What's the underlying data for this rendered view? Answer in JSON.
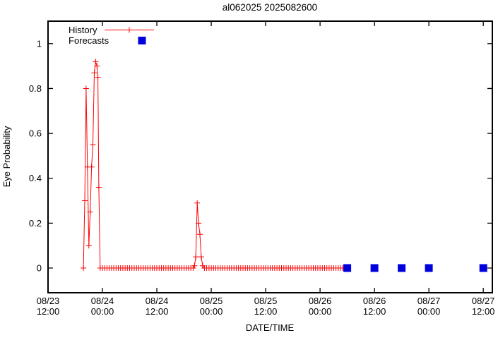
{
  "page": {
    "background": "#ffffff"
  },
  "chart_data": {
    "type": "line",
    "title": "al062025 2025082600",
    "xlabel": "DATE/TIME",
    "ylabel": "Eye Probability",
    "x_units": "hours since 08/23 12:00",
    "xlim": [
      0,
      98
    ],
    "ylim": [
      -0.11,
      1.1
    ],
    "grid": false,
    "legend_position": "top-left-inside",
    "x_ticks": [
      {
        "t": 0,
        "date": "08/23",
        "time": "12:00"
      },
      {
        "t": 12,
        "date": "08/24",
        "time": "00:00"
      },
      {
        "t": 24,
        "date": "08/24",
        "time": "12:00"
      },
      {
        "t": 36,
        "date": "08/25",
        "time": "00:00"
      },
      {
        "t": 48,
        "date": "08/25",
        "time": "12:00"
      },
      {
        "t": 60,
        "date": "08/26",
        "time": "00:00"
      },
      {
        "t": 72,
        "date": "08/26",
        "time": "12:00"
      },
      {
        "t": 84,
        "date": "08/27",
        "time": "00:00"
      },
      {
        "t": 96,
        "date": "08/27",
        "time": "12:00"
      }
    ],
    "y_ticks": [
      {
        "v": 0,
        "label": "0"
      },
      {
        "v": 0.2,
        "label": "0.2"
      },
      {
        "v": 0.4,
        "label": "0.4"
      },
      {
        "v": 0.6,
        "label": "0.6"
      },
      {
        "v": 0.8,
        "label": "0.8"
      },
      {
        "v": 1,
        "label": "1"
      }
    ],
    "series": [
      {
        "name": "History",
        "type": "linespoints",
        "marker": "plus",
        "color": "#ff0000",
        "points": [
          [
            7.8,
            0
          ],
          [
            8.1,
            0.3
          ],
          [
            8.4,
            0.8
          ],
          [
            8.7,
            0.45
          ],
          [
            9.0,
            0.1
          ],
          [
            9.3,
            0.25
          ],
          [
            9.6,
            0.45
          ],
          [
            9.9,
            0.55
          ],
          [
            10.2,
            0.87
          ],
          [
            10.5,
            0.92
          ],
          [
            10.8,
            0.9
          ],
          [
            11.0,
            0.85
          ],
          [
            11.2,
            0.36
          ],
          [
            11.5,
            0
          ],
          [
            12,
            0
          ],
          [
            12.5,
            0
          ],
          [
            13,
            0
          ],
          [
            13.5,
            0
          ],
          [
            14,
            0
          ],
          [
            14.5,
            0
          ],
          [
            15,
            0
          ],
          [
            15.5,
            0
          ],
          [
            16,
            0
          ],
          [
            16.5,
            0
          ],
          [
            17,
            0
          ],
          [
            17.5,
            0
          ],
          [
            18,
            0
          ],
          [
            18.5,
            0
          ],
          [
            19,
            0
          ],
          [
            19.5,
            0
          ],
          [
            20,
            0
          ],
          [
            20.5,
            0
          ],
          [
            21,
            0
          ],
          [
            21.5,
            0
          ],
          [
            22,
            0
          ],
          [
            22.5,
            0
          ],
          [
            23,
            0
          ],
          [
            23.5,
            0
          ],
          [
            24,
            0
          ],
          [
            24.5,
            0
          ],
          [
            25,
            0
          ],
          [
            25.5,
            0
          ],
          [
            26,
            0
          ],
          [
            26.5,
            0
          ],
          [
            27,
            0
          ],
          [
            27.5,
            0
          ],
          [
            28,
            0
          ],
          [
            28.5,
            0
          ],
          [
            29,
            0
          ],
          [
            29.5,
            0
          ],
          [
            30,
            0
          ],
          [
            30.5,
            0
          ],
          [
            31,
            0
          ],
          [
            31.5,
            0
          ],
          [
            32,
            0
          ],
          [
            32.3,
            0.01
          ],
          [
            32.6,
            0.05
          ],
          [
            32.9,
            0.29
          ],
          [
            33.2,
            0.2
          ],
          [
            33.5,
            0.15
          ],
          [
            33.8,
            0.05
          ],
          [
            34.1,
            0.01
          ],
          [
            34.5,
            0
          ],
          [
            35,
            0
          ],
          [
            35.5,
            0
          ],
          [
            36,
            0
          ],
          [
            36.5,
            0
          ],
          [
            37,
            0
          ],
          [
            37.5,
            0
          ],
          [
            38,
            0
          ],
          [
            38.5,
            0
          ],
          [
            39,
            0
          ],
          [
            39.5,
            0
          ],
          [
            40,
            0
          ],
          [
            40.5,
            0
          ],
          [
            41,
            0
          ],
          [
            41.5,
            0
          ],
          [
            42,
            0
          ],
          [
            42.5,
            0
          ],
          [
            43,
            0
          ],
          [
            43.5,
            0
          ],
          [
            44,
            0
          ],
          [
            44.5,
            0
          ],
          [
            45,
            0
          ],
          [
            45.5,
            0
          ],
          [
            46,
            0
          ],
          [
            46.5,
            0
          ],
          [
            47,
            0
          ],
          [
            47.5,
            0
          ],
          [
            48,
            0
          ],
          [
            48.5,
            0
          ],
          [
            49,
            0
          ],
          [
            49.5,
            0
          ],
          [
            50,
            0
          ],
          [
            50.5,
            0
          ],
          [
            51,
            0
          ],
          [
            51.5,
            0
          ],
          [
            52,
            0
          ],
          [
            52.5,
            0
          ],
          [
            53,
            0
          ],
          [
            53.5,
            0
          ],
          [
            54,
            0
          ],
          [
            54.5,
            0
          ],
          [
            55,
            0
          ],
          [
            55.5,
            0
          ],
          [
            56,
            0
          ],
          [
            56.5,
            0
          ],
          [
            57,
            0
          ],
          [
            57.5,
            0
          ],
          [
            58,
            0
          ],
          [
            58.5,
            0
          ],
          [
            59,
            0
          ],
          [
            59.5,
            0
          ],
          [
            60,
            0
          ],
          [
            60.5,
            0
          ],
          [
            61,
            0
          ],
          [
            61.5,
            0
          ],
          [
            62,
            0
          ],
          [
            62.5,
            0
          ],
          [
            63,
            0
          ],
          [
            63.5,
            0
          ],
          [
            64,
            0
          ],
          [
            64.5,
            0
          ],
          [
            65,
            0
          ],
          [
            65.5,
            0
          ],
          [
            66,
            0
          ]
        ]
      },
      {
        "name": "Forecasts",
        "type": "points",
        "marker": "filled-square",
        "color": "#0000dd",
        "points": [
          [
            66,
            0
          ],
          [
            72,
            0
          ],
          [
            78,
            0
          ],
          [
            84,
            0
          ],
          [
            96,
            0
          ]
        ]
      }
    ]
  }
}
